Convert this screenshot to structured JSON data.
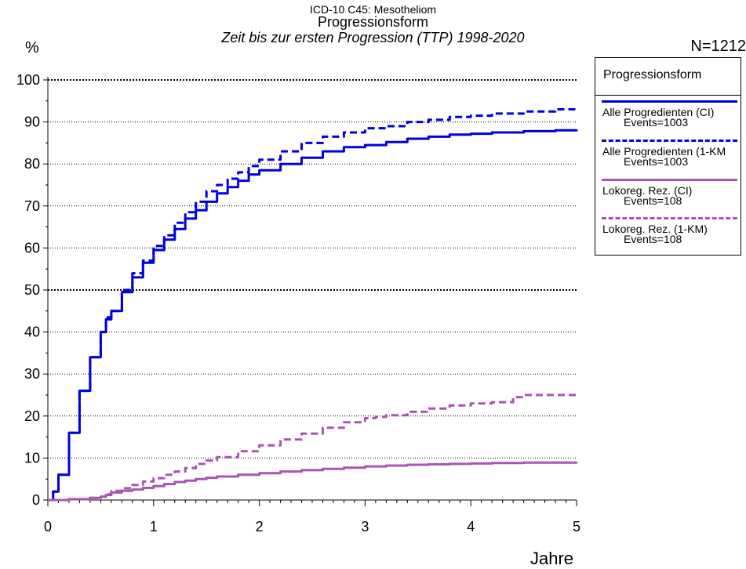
{
  "chart_data": {
    "type": "line",
    "title_line1": "ICD-10 C45: Mesotheliom",
    "title_line2": "Progressionsform",
    "subtitle": "Zeit bis zur ersten Progression (TTP) 1998-2020",
    "ylabel": "%",
    "xlabel": "Jahre",
    "n_label": "N=1212",
    "xlim": [
      0,
      5
    ],
    "ylim": [
      0,
      100
    ],
    "x_ticks": [
      "0",
      "1",
      "2",
      "3",
      "4",
      "5"
    ],
    "y_ticks": [
      "0",
      "10",
      "20",
      "30",
      "40",
      "50",
      "60",
      "70",
      "80",
      "90",
      "100"
    ],
    "grid": "horizontal-dotted",
    "legend": {
      "title": "Progressionsform",
      "placement": "right",
      "entries": [
        {
          "name": "Alle Progredienten (CI)",
          "events": "Events=1003"
        },
        {
          "name": "Alle Progredienten (1-KM",
          "events": "Events=1003"
        },
        {
          "name": "Lokoreg. Rez. (CI)",
          "events": "Events=108"
        },
        {
          "name": "Lokoreg. Rez. (1-KM)",
          "events": "Events=108"
        }
      ]
    },
    "series": [
      {
        "color": "#0000dd",
        "style": "solid",
        "x": [
          0,
          0.05,
          0.1,
          0.2,
          0.3,
          0.4,
          0.5,
          0.55,
          0.6,
          0.7,
          0.8,
          0.9,
          1.0,
          1.1,
          1.2,
          1.3,
          1.4,
          1.5,
          1.6,
          1.7,
          1.8,
          1.9,
          2.0,
          2.2,
          2.4,
          2.6,
          2.8,
          3.0,
          3.2,
          3.4,
          3.6,
          3.8,
          4.0,
          4.2,
          4.5,
          4.8,
          5.0
        ],
        "y": [
          0,
          2,
          6,
          16,
          26,
          34,
          40,
          43,
          45,
          49.5,
          53,
          56.5,
          59.5,
          62,
          64.5,
          67,
          69,
          71,
          73,
          74.5,
          76,
          77.5,
          78.5,
          80,
          81.5,
          83,
          84,
          84.5,
          85.2,
          86,
          86.5,
          87,
          87.2,
          87.5,
          87.8,
          88,
          88.2
        ]
      },
      {
        "color": "#0000dd",
        "style": "dashed",
        "x": [
          0,
          0.05,
          0.1,
          0.2,
          0.3,
          0.4,
          0.5,
          0.55,
          0.6,
          0.7,
          0.8,
          0.9,
          1.0,
          1.1,
          1.2,
          1.3,
          1.4,
          1.5,
          1.6,
          1.7,
          1.8,
          1.9,
          2.0,
          2.2,
          2.4,
          2.6,
          2.8,
          3.0,
          3.2,
          3.4,
          3.6,
          3.8,
          4.0,
          4.2,
          4.5,
          4.8,
          5.0
        ],
        "y": [
          0,
          2,
          6,
          16,
          26,
          34,
          40,
          43.5,
          45,
          50,
          54,
          57,
          60.5,
          63,
          66,
          68.5,
          71,
          73.5,
          75,
          76.5,
          78,
          79.5,
          81,
          83,
          85,
          86.5,
          87.5,
          88.5,
          89,
          90,
          90.5,
          91.2,
          91.5,
          92,
          92.5,
          93,
          93
        ]
      },
      {
        "color": "#a855b0",
        "style": "solid",
        "x": [
          0,
          0.2,
          0.4,
          0.5,
          0.55,
          0.6,
          0.7,
          0.8,
          0.9,
          1.0,
          1.1,
          1.2,
          1.3,
          1.4,
          1.5,
          1.6,
          1.8,
          2.0,
          2.2,
          2.4,
          2.6,
          2.8,
          3.0,
          3.2,
          3.4,
          3.6,
          3.8,
          4.0,
          4.2,
          4.5,
          5.0
        ],
        "y": [
          0,
          0.2,
          0.5,
          0.8,
          1.2,
          1.8,
          2.2,
          2.5,
          2.9,
          3.3,
          3.8,
          4.3,
          4.6,
          5.0,
          5.3,
          5.6,
          6.0,
          6.4,
          6.8,
          7.1,
          7.4,
          7.7,
          8.0,
          8.2,
          8.4,
          8.5,
          8.6,
          8.7,
          8.8,
          8.9,
          9.0
        ]
      },
      {
        "color": "#a855b0",
        "style": "dashed",
        "x": [
          0,
          0.2,
          0.4,
          0.5,
          0.55,
          0.6,
          0.7,
          0.8,
          0.9,
          1.0,
          1.1,
          1.2,
          1.3,
          1.4,
          1.5,
          1.6,
          1.8,
          2.0,
          2.2,
          2.4,
          2.6,
          2.8,
          3.0,
          3.1,
          3.2,
          3.4,
          3.6,
          3.8,
          4.0,
          4.2,
          4.4,
          4.5,
          4.8,
          5.0
        ],
        "y": [
          0,
          0.2,
          0.5,
          0.8,
          1.4,
          2.2,
          2.8,
          3.6,
          4.4,
          5.2,
          6.0,
          6.8,
          7.6,
          8.6,
          9.4,
          10.2,
          11.6,
          13.0,
          14.4,
          15.8,
          17.2,
          18.5,
          19.5,
          19.8,
          20.2,
          21.0,
          21.8,
          22.5,
          23.0,
          23.3,
          24.5,
          25.0,
          25.0,
          25.0
        ]
      }
    ]
  }
}
